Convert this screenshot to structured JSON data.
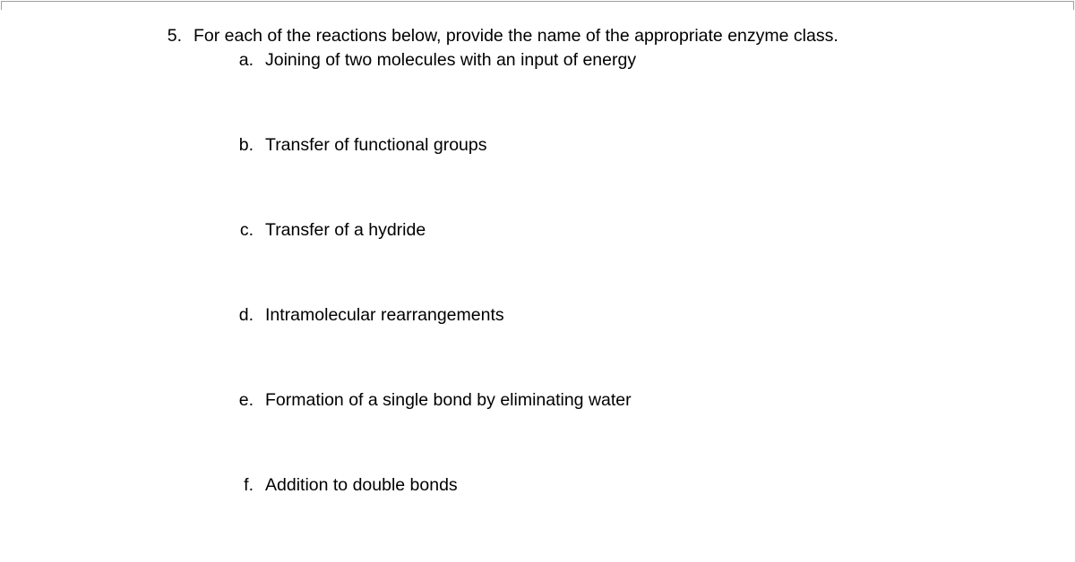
{
  "document": {
    "background_color": "#ffffff",
    "text_color": "#000000",
    "font_size_pt": 14,
    "font_family": "Arial",
    "question": {
      "number": "5.",
      "text": "For each of the reactions below, provide the name of the appropriate enzyme class.",
      "items": [
        {
          "letter": "a.",
          "text": "Joining of two molecules with an input of energy"
        },
        {
          "letter": "b.",
          "text": "Transfer of functional groups"
        },
        {
          "letter": "c.",
          "text": "Transfer of a hydride"
        },
        {
          "letter": "d.",
          "text": "Intramolecular rearrangements"
        },
        {
          "letter": "e.",
          "text": "Formation of a single bond by eliminating water"
        },
        {
          "letter": "f.",
          "text": "Addition to double bonds"
        }
      ]
    }
  }
}
